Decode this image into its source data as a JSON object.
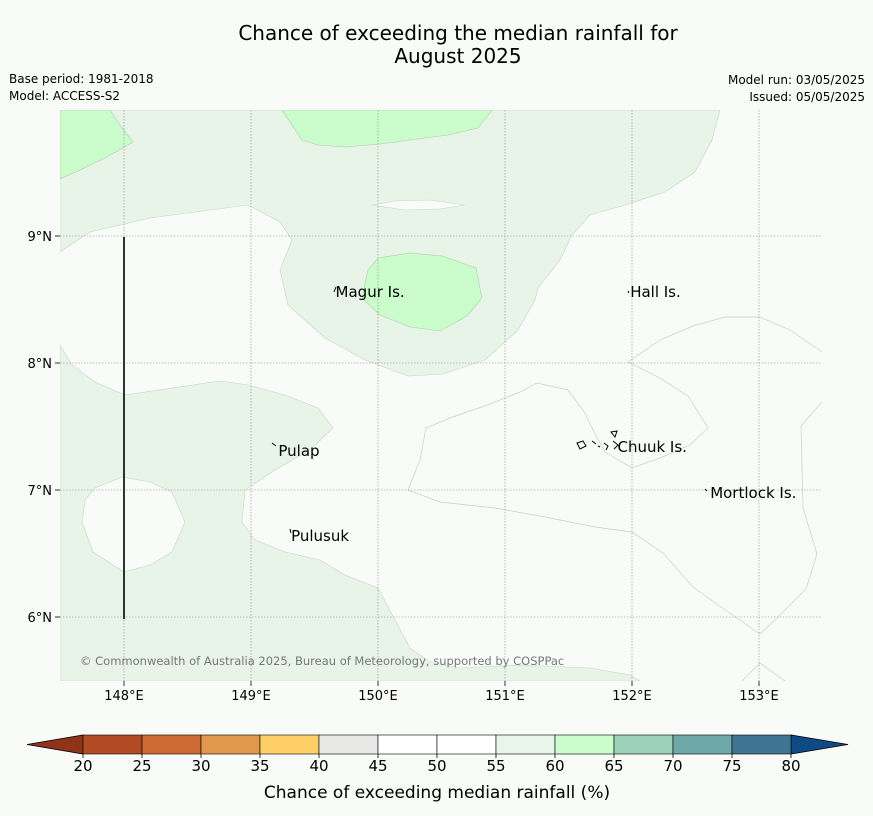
{
  "header": {
    "title_line1": "Chance of exceeding the median rainfall for",
    "title_line2": "August 2025",
    "base_period": "Base period: 1981-2018",
    "model": "Model: ACCESS-S2",
    "model_run": "Model run: 03/05/2025",
    "issued": "Issued: 05/05/2025"
  },
  "map": {
    "lon_range": [
      147.5,
      153.5
    ],
    "lat_range": [
      5.5,
      10.0
    ],
    "lon_ticks": [
      {
        "value": 148,
        "label": "148°E"
      },
      {
        "value": 149,
        "label": "149°E"
      },
      {
        "value": 150,
        "label": "150°E"
      },
      {
        "value": 151,
        "label": "151°E"
      },
      {
        "value": 152,
        "label": "152°E"
      },
      {
        "value": 153,
        "label": "153°E"
      }
    ],
    "lat_ticks": [
      {
        "value": 9,
        "label": "9°N"
      },
      {
        "value": 8,
        "label": "8°N"
      },
      {
        "value": 7,
        "label": "7°N"
      },
      {
        "value": 6,
        "label": "6°N"
      }
    ],
    "places": [
      {
        "name": "Magur Is.",
        "lon": 149.65,
        "lat": 8.55
      },
      {
        "name": "Hall Is.",
        "lon": 151.97,
        "lat": 8.55
      },
      {
        "name": "Pulap",
        "lon": 149.2,
        "lat": 7.3
      },
      {
        "name": "Chuuk Is.",
        "lon": 151.87,
        "lat": 7.33
      },
      {
        "name": "Mortlock Is.",
        "lon": 152.6,
        "lat": 6.97
      },
      {
        "name": "Pulusuk",
        "lon": 149.3,
        "lat": 6.63
      }
    ],
    "copyright": "© Commonwealth of Australia 2025, Bureau of Meteorology, supported by COSPPac",
    "colors": {
      "band_55_60": "#e8f4e8",
      "band_60_65": "#cbfccb",
      "background": "#f9fbf8"
    }
  },
  "colorbar": {
    "label": "Chance of exceeding median rainfall (%)",
    "ticks": [
      "20",
      "25",
      "30",
      "35",
      "40",
      "45",
      "50",
      "55",
      "60",
      "65",
      "70",
      "75",
      "80"
    ],
    "colors": [
      "#b24a25",
      "#cd6933",
      "#e1984c",
      "#fecf66",
      "#e8e8e6",
      "#ffffff",
      "#ffffff",
      "#e9f5e9",
      "#cbfccb",
      "#9dd1b8",
      "#6fa8a9",
      "#3f7592"
    ],
    "under_color": "#8f3419",
    "over_color": "#0e4a84"
  }
}
